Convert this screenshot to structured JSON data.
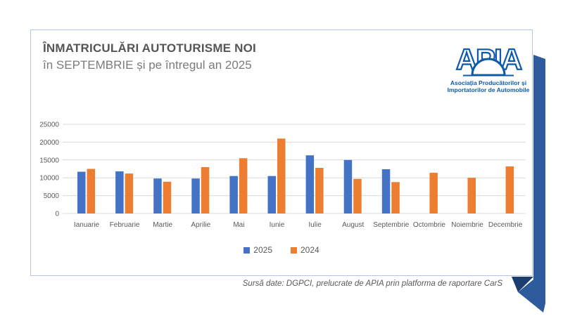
{
  "card": {
    "title": "ÎNMATRICULĂRI AUTOTURISME NOI",
    "subtitle": "în SEPTEMBRIE și pe întregul an 2025"
  },
  "logo": {
    "brand": "APIA",
    "org_line1": "Asociația Producătorilor și",
    "org_line2": "Importatorilor de Automobile"
  },
  "chart_data": {
    "type": "bar",
    "title": "",
    "xlabel": "",
    "ylabel": "",
    "categories": [
      "Ianuarie",
      "Februarie",
      "Martie",
      "Aprilie",
      "Mai",
      "Iunie",
      "Iulie",
      "August",
      "Septembrie",
      "Octombrie",
      "Noiembrie",
      "Decembrie"
    ],
    "series": [
      {
        "name": "2025",
        "color": "#4472c4",
        "values": [
          11700,
          11800,
          9800,
          9800,
          10500,
          10500,
          16300,
          15000,
          12400,
          null,
          null,
          null
        ]
      },
      {
        "name": "2024",
        "color": "#ed7d31",
        "values": [
          12500,
          11200,
          8900,
          13000,
          15500,
          21000,
          12800,
          9700,
          8800,
          11400,
          10000,
          13200
        ]
      }
    ],
    "ylim": [
      0,
      25000
    ],
    "yticks": [
      0,
      5000,
      10000,
      15000,
      20000,
      25000
    ],
    "grid": true,
    "legend_position": "bottom"
  },
  "footer": {
    "source": "Sursă date: DGPCI, prelucrate de APIA prin platforma de raportare CarS"
  },
  "colors": {
    "series_2025": "#4472c4",
    "series_2024": "#ed7d31",
    "gridline": "#d9d9d9",
    "axis_text": "#595959",
    "title_text": "#555555",
    "subtitle_text": "#7b7b7b",
    "card_border": "#b3c6dd",
    "ribbon_blue": "#2e5b9c",
    "ribbon_fold_navy": "#1c3e6e",
    "logo_blue": "#0d5aa9"
  }
}
